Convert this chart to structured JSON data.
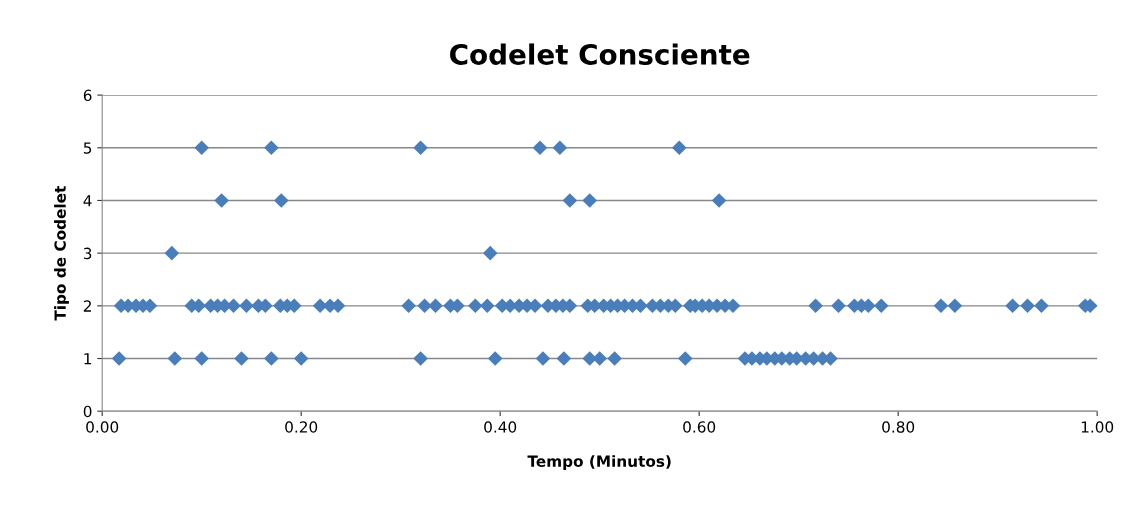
{
  "chart_data": {
    "type": "scatter",
    "title": "Codelet Consciente",
    "xlabel": "Tempo (Minutos)",
    "ylabel": "Tipo de Codelet",
    "series": [
      {
        "color": "#4a7ebb",
        "x": [
          0.1,
          0.17,
          0.32,
          0.44,
          0.46,
          0.58,
          0.12,
          0.18,
          0.47,
          0.49,
          0.62,
          0.07,
          0.39,
          0.017,
          0.073,
          0.1,
          0.14,
          0.17,
          0.2,
          0.32,
          0.395,
          0.443,
          0.464,
          0.49,
          0.5,
          0.515,
          0.586,
          0.646,
          0.653,
          0.661,
          0.668,
          0.676,
          0.683,
          0.691,
          0.698,
          0.707,
          0.715,
          0.724,
          0.732,
          0.019,
          0.026,
          0.034,
          0.041,
          0.048,
          0.09,
          0.097,
          0.109,
          0.116,
          0.123,
          0.132,
          0.145,
          0.157,
          0.164,
          0.179,
          0.186,
          0.193,
          0.219,
          0.229,
          0.237,
          0.308,
          0.324,
          0.335,
          0.35,
          0.357,
          0.375,
          0.387,
          0.402,
          0.41,
          0.419,
          0.427,
          0.435,
          0.448,
          0.456,
          0.463,
          0.47,
          0.488,
          0.495,
          0.504,
          0.511,
          0.518,
          0.525,
          0.533,
          0.541,
          0.553,
          0.561,
          0.569,
          0.576,
          0.591,
          0.596,
          0.603,
          0.61,
          0.618,
          0.626,
          0.634,
          0.717,
          0.74,
          0.756,
          0.763,
          0.77,
          0.783,
          0.843,
          0.857,
          0.915,
          0.93,
          0.944,
          0.988,
          0.993
        ],
        "values": [
          5,
          5,
          5,
          5,
          5,
          5,
          4,
          4,
          4,
          4,
          4,
          3,
          3,
          1,
          1,
          1,
          1,
          1,
          1,
          1,
          1,
          1,
          1,
          1,
          1,
          1,
          1,
          1,
          1,
          1,
          1,
          1,
          1,
          1,
          1,
          1,
          1,
          1,
          1,
          2,
          2,
          2,
          2,
          2,
          2,
          2,
          2,
          2,
          2,
          2,
          2,
          2,
          2,
          2,
          2,
          2,
          2,
          2,
          2,
          2,
          2,
          2,
          2,
          2,
          2,
          2,
          2,
          2,
          2,
          2,
          2,
          2,
          2,
          2,
          2,
          2,
          2,
          2,
          2,
          2,
          2,
          2,
          2,
          2,
          2,
          2,
          2,
          2,
          2,
          2,
          2,
          2,
          2,
          2,
          2,
          2,
          2,
          2,
          2,
          2,
          2,
          2,
          2,
          2,
          2,
          2,
          2
        ]
      }
    ],
    "xlim": [
      0,
      1
    ],
    "xticks": [
      {
        "value": 0,
        "label": "0.00"
      },
      {
        "value": 0.2,
        "label": "0.20"
      },
      {
        "value": 0.4,
        "label": "0.40"
      },
      {
        "value": 0.6,
        "label": "0.60"
      },
      {
        "value": 0.8,
        "label": "0.80"
      },
      {
        "value": 1,
        "label": "1.00"
      }
    ],
    "ylim": [
      0,
      6
    ],
    "yticks": [
      0,
      1,
      2,
      3,
      4,
      5,
      6
    ],
    "grid": "y",
    "marker": "diamond"
  }
}
